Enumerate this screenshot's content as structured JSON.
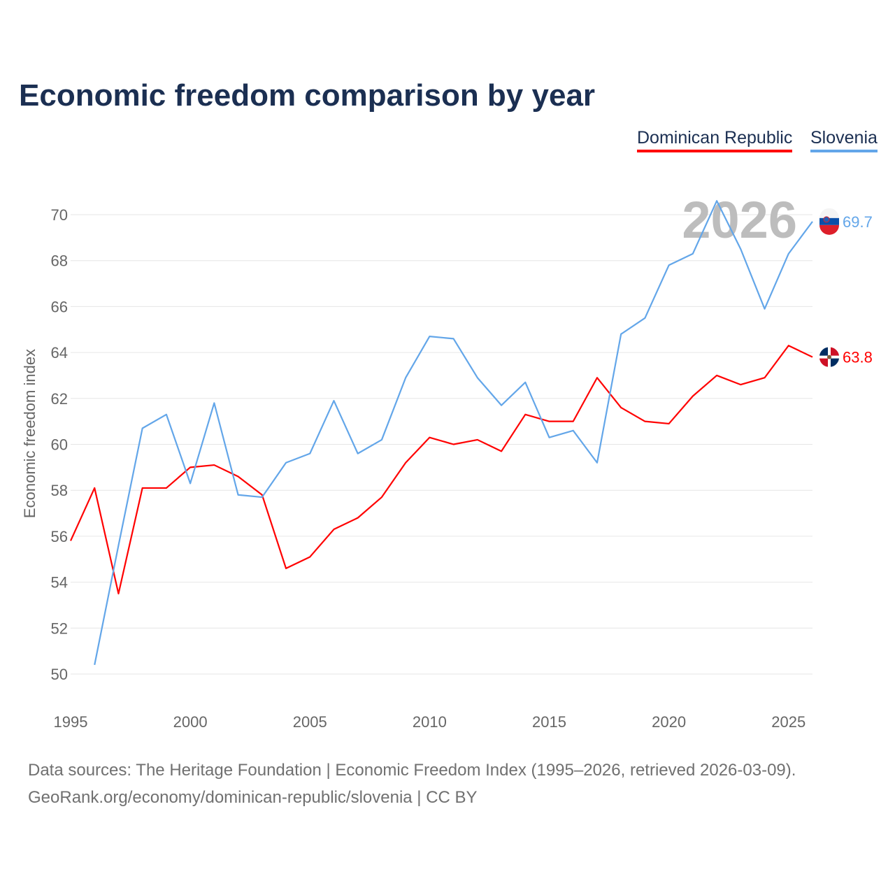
{
  "chart_data": {
    "type": "line",
    "title": "Economic freedom comparison by year",
    "ylabel": "Economic freedom index",
    "xlabel": "",
    "xlim": [
      1995,
      2026
    ],
    "ylim": [
      50,
      70
    ],
    "xticks": [
      "1995",
      "2000",
      "2005",
      "2010",
      "2015",
      "2020",
      "2025"
    ],
    "yticks": [
      "50",
      "52",
      "54",
      "56",
      "58",
      "60",
      "62",
      "64",
      "66",
      "68",
      "70"
    ],
    "grid": true,
    "legend_position": "top-right",
    "year_watermark": "2026",
    "series": [
      {
        "name": "Dominican Republic",
        "color": "#ff0000",
        "end_label": "63.8",
        "x": [
          1995,
          1996,
          1997,
          1998,
          1999,
          2000,
          2001,
          2002,
          2003,
          2004,
          2005,
          2006,
          2007,
          2008,
          2009,
          2010,
          2011,
          2012,
          2013,
          2014,
          2015,
          2016,
          2017,
          2018,
          2019,
          2020,
          2021,
          2022,
          2023,
          2024,
          2025,
          2026
        ],
        "values": [
          55.8,
          58.1,
          53.5,
          58.1,
          58.1,
          59.0,
          59.1,
          58.6,
          57.8,
          54.6,
          55.1,
          56.3,
          56.8,
          57.7,
          59.2,
          60.3,
          60.0,
          60.2,
          59.7,
          61.3,
          61.0,
          61.0,
          62.9,
          61.6,
          61.0,
          60.9,
          62.1,
          63.0,
          62.6,
          62.9,
          64.3,
          63.8
        ]
      },
      {
        "name": "Slovenia",
        "color": "#63a6e9",
        "end_label": "69.7",
        "x": [
          1996,
          1997,
          1998,
          1999,
          2000,
          2001,
          2002,
          2003,
          2004,
          2005,
          2006,
          2007,
          2008,
          2009,
          2010,
          2011,
          2012,
          2013,
          2014,
          2015,
          2016,
          2017,
          2018,
          2019,
          2020,
          2021,
          2022,
          2023,
          2024,
          2025,
          2026
        ],
        "values": [
          50.4,
          55.6,
          60.7,
          61.3,
          58.3,
          61.8,
          57.8,
          57.7,
          59.2,
          59.6,
          61.9,
          59.6,
          60.2,
          62.9,
          64.7,
          64.6,
          62.9,
          61.7,
          62.7,
          60.3,
          60.6,
          59.2,
          64.8,
          65.5,
          67.8,
          68.3,
          70.6,
          68.5,
          65.9,
          68.3,
          69.7
        ]
      }
    ]
  },
  "footer": {
    "sources": "Data sources: The Heritage Foundation | Economic Freedom Index (1995–2026, retrieved 2026-03-09).",
    "credit": "GeoRank.org/economy/dominican-republic/slovenia | CC BY"
  }
}
